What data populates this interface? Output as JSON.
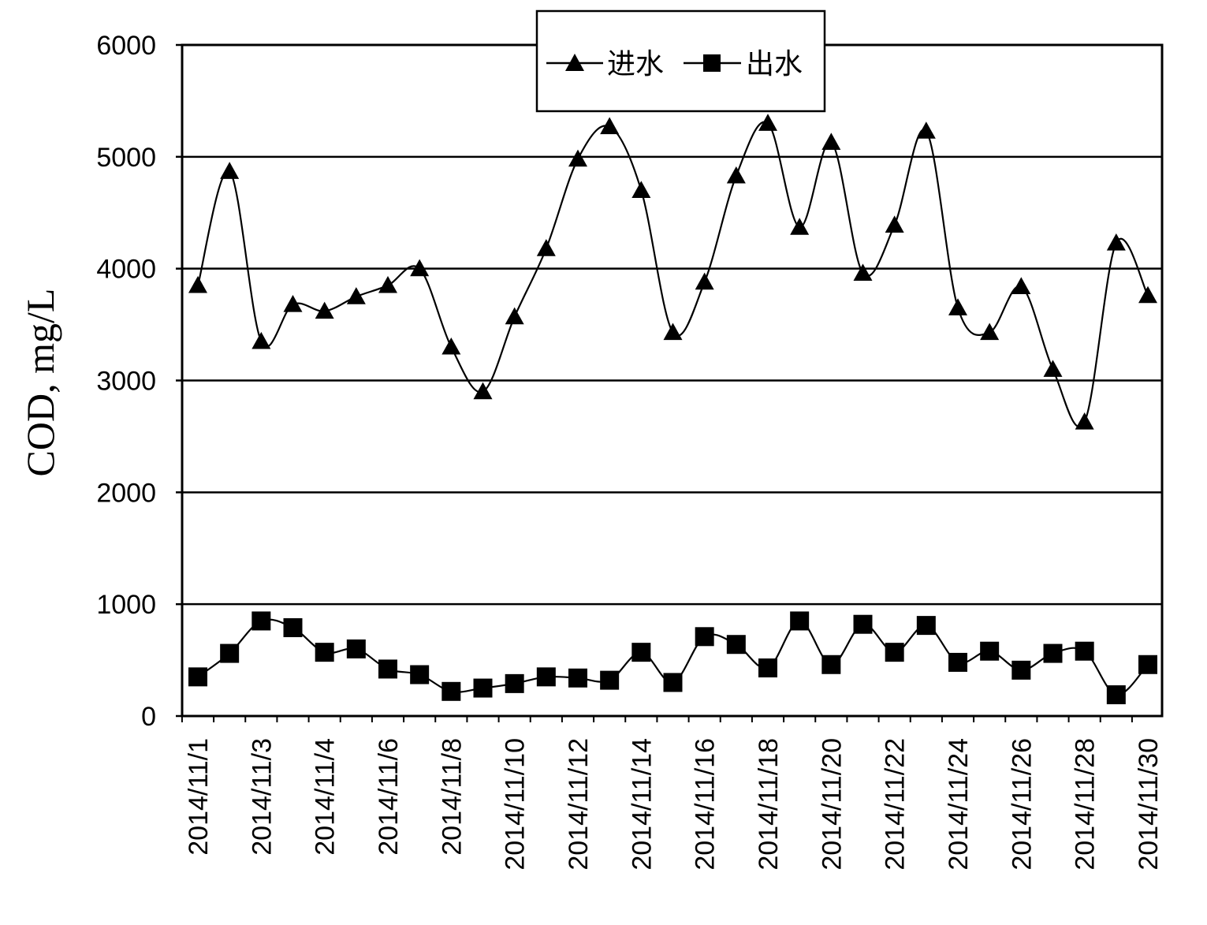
{
  "chart_data": {
    "type": "line",
    "title": "",
    "xlabel": "",
    "ylabel": "COD, mg/L",
    "ylim": [
      0,
      6000
    ],
    "yticks": [
      0,
      1000,
      2000,
      3000,
      4000,
      5000,
      6000
    ],
    "grid": "horizontal",
    "legend_position": "top-center",
    "x_tick_labels": [
      "2014/11/1",
      "2014/11/3",
      "2014/11/4",
      "2014/11/6",
      "2014/11/8",
      "2014/11/10",
      "2014/11/12",
      "2014/11/14",
      "2014/11/16",
      "2014/11/18",
      "2014/11/20",
      "2014/11/22",
      "2014/11/24",
      "2014/11/26",
      "2014/11/28",
      "2014/11/30"
    ],
    "series": [
      {
        "name": "进水",
        "marker": "triangle",
        "values": [
          3850,
          4870,
          3350,
          3680,
          3620,
          3750,
          3850,
          4000,
          3300,
          2900,
          3570,
          4180,
          4980,
          5270,
          4700,
          3430,
          3880,
          4830,
          5300,
          4370,
          5130,
          3960,
          4390,
          5230,
          3650,
          3430,
          3840,
          3100,
          2630,
          4230,
          3760
        ]
      },
      {
        "name": "出水",
        "marker": "square",
        "values": [
          350,
          560,
          850,
          790,
          570,
          600,
          420,
          370,
          220,
          250,
          290,
          350,
          340,
          320,
          570,
          300,
          710,
          640,
          430,
          850,
          460,
          820,
          570,
          810,
          480,
          580,
          410,
          560,
          580,
          190,
          460
        ]
      }
    ]
  }
}
